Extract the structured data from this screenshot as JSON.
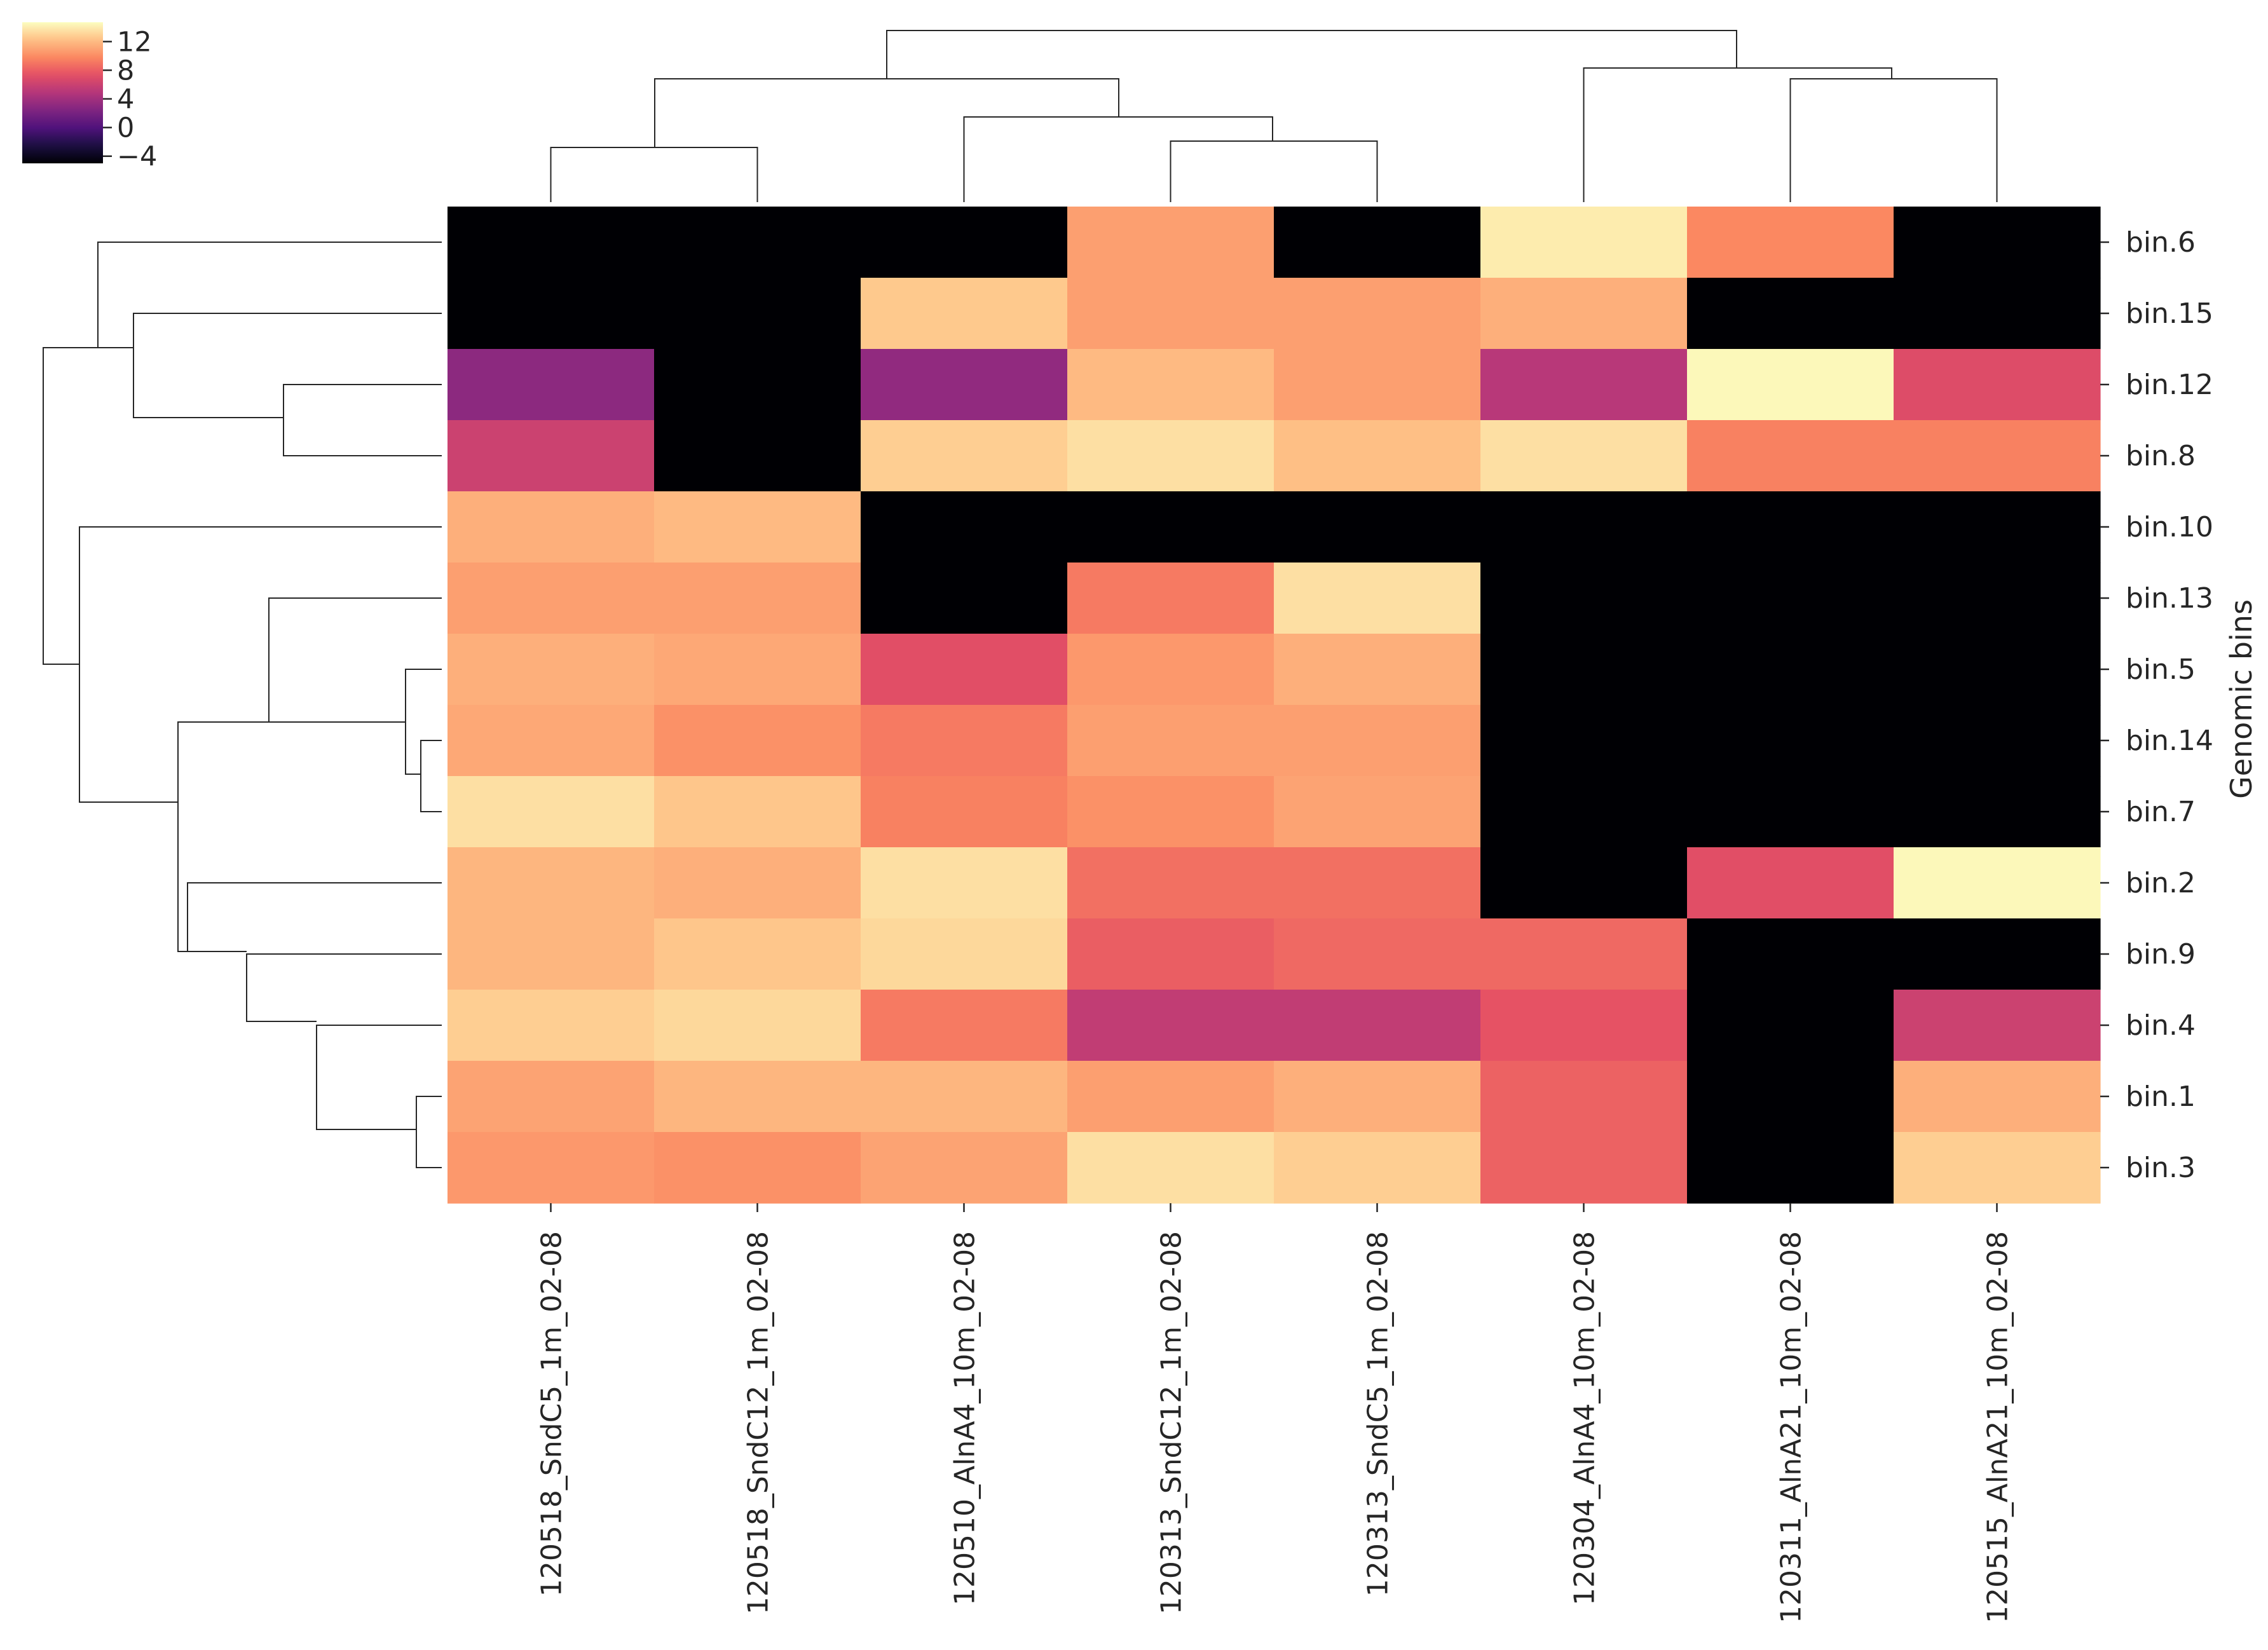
{
  "chart_data": {
    "type": "heatmap",
    "title": "",
    "ylabel": "Genomic bins",
    "columns": [
      "120518_SndC5_1m_02-08",
      "120518_SndC12_1m_02-08",
      "120510_AlnA4_10m_02-08",
      "120313_SndC12_1m_02-08",
      "120313_SndC5_1m_02-08",
      "120304_AlnA4_10m_02-08",
      "120311_AlnA21_10m_02-08",
      "120515_AlnA21_10m_02-08"
    ],
    "rows": [
      "bin.6",
      "bin.15",
      "bin.12",
      "bin.8",
      "bin.10",
      "bin.13",
      "bin.5",
      "bin.14",
      "bin.7",
      "bin.2",
      "bin.9",
      "bin.4",
      "bin.1",
      "bin.3"
    ],
    "values": [
      [
        -5,
        -5,
        -5,
        10.8,
        -5,
        14,
        9.8,
        -5
      ],
      [
        -5,
        -5,
        12.6,
        10.8,
        10.8,
        11.5,
        -5,
        -5
      ],
      [
        3,
        -5,
        3.2,
        12,
        10.8,
        5,
        14.5,
        7
      ],
      [
        6,
        -5,
        12.8,
        13.5,
        12.2,
        13.5,
        9.5,
        9.5
      ],
      [
        11.5,
        12,
        -5,
        -5,
        -5,
        -5,
        -5,
        -5
      ],
      [
        10.8,
        10.8,
        -5,
        9.2,
        13.5,
        -5,
        -5,
        -5
      ],
      [
        11.5,
        11.2,
        7.2,
        10.5,
        11.5,
        -5,
        -5,
        -5
      ],
      [
        11.2,
        10.2,
        9.2,
        10.8,
        10.8,
        -5,
        -5,
        -5
      ],
      [
        13.5,
        12.5,
        9.5,
        10.2,
        11,
        -5,
        -5,
        -5
      ],
      [
        11.8,
        11.5,
        13.5,
        8.8,
        8.8,
        -5,
        7.2,
        14.5
      ],
      [
        11.8,
        12.5,
        13.2,
        8,
        8.5,
        8.5,
        -5,
        -5
      ],
      [
        12.8,
        13.2,
        9.2,
        5.5,
        5.5,
        7.5,
        -5,
        6
      ],
      [
        11,
        11.8,
        11.8,
        10.8,
        11.5,
        8.2,
        -5,
        11.5
      ],
      [
        10.5,
        10.2,
        11,
        13.5,
        12.8,
        8.2,
        -5,
        12.8
      ]
    ],
    "colorbar": {
      "colormap": "magma",
      "vmin": -5,
      "vmax": 14.7,
      "ticks": [
        12,
        8,
        4,
        0,
        -4
      ],
      "tick_labels": [
        "12",
        "8",
        "4",
        "0",
        "−4"
      ]
    },
    "grid": false,
    "legend_placement": "top-left"
  }
}
